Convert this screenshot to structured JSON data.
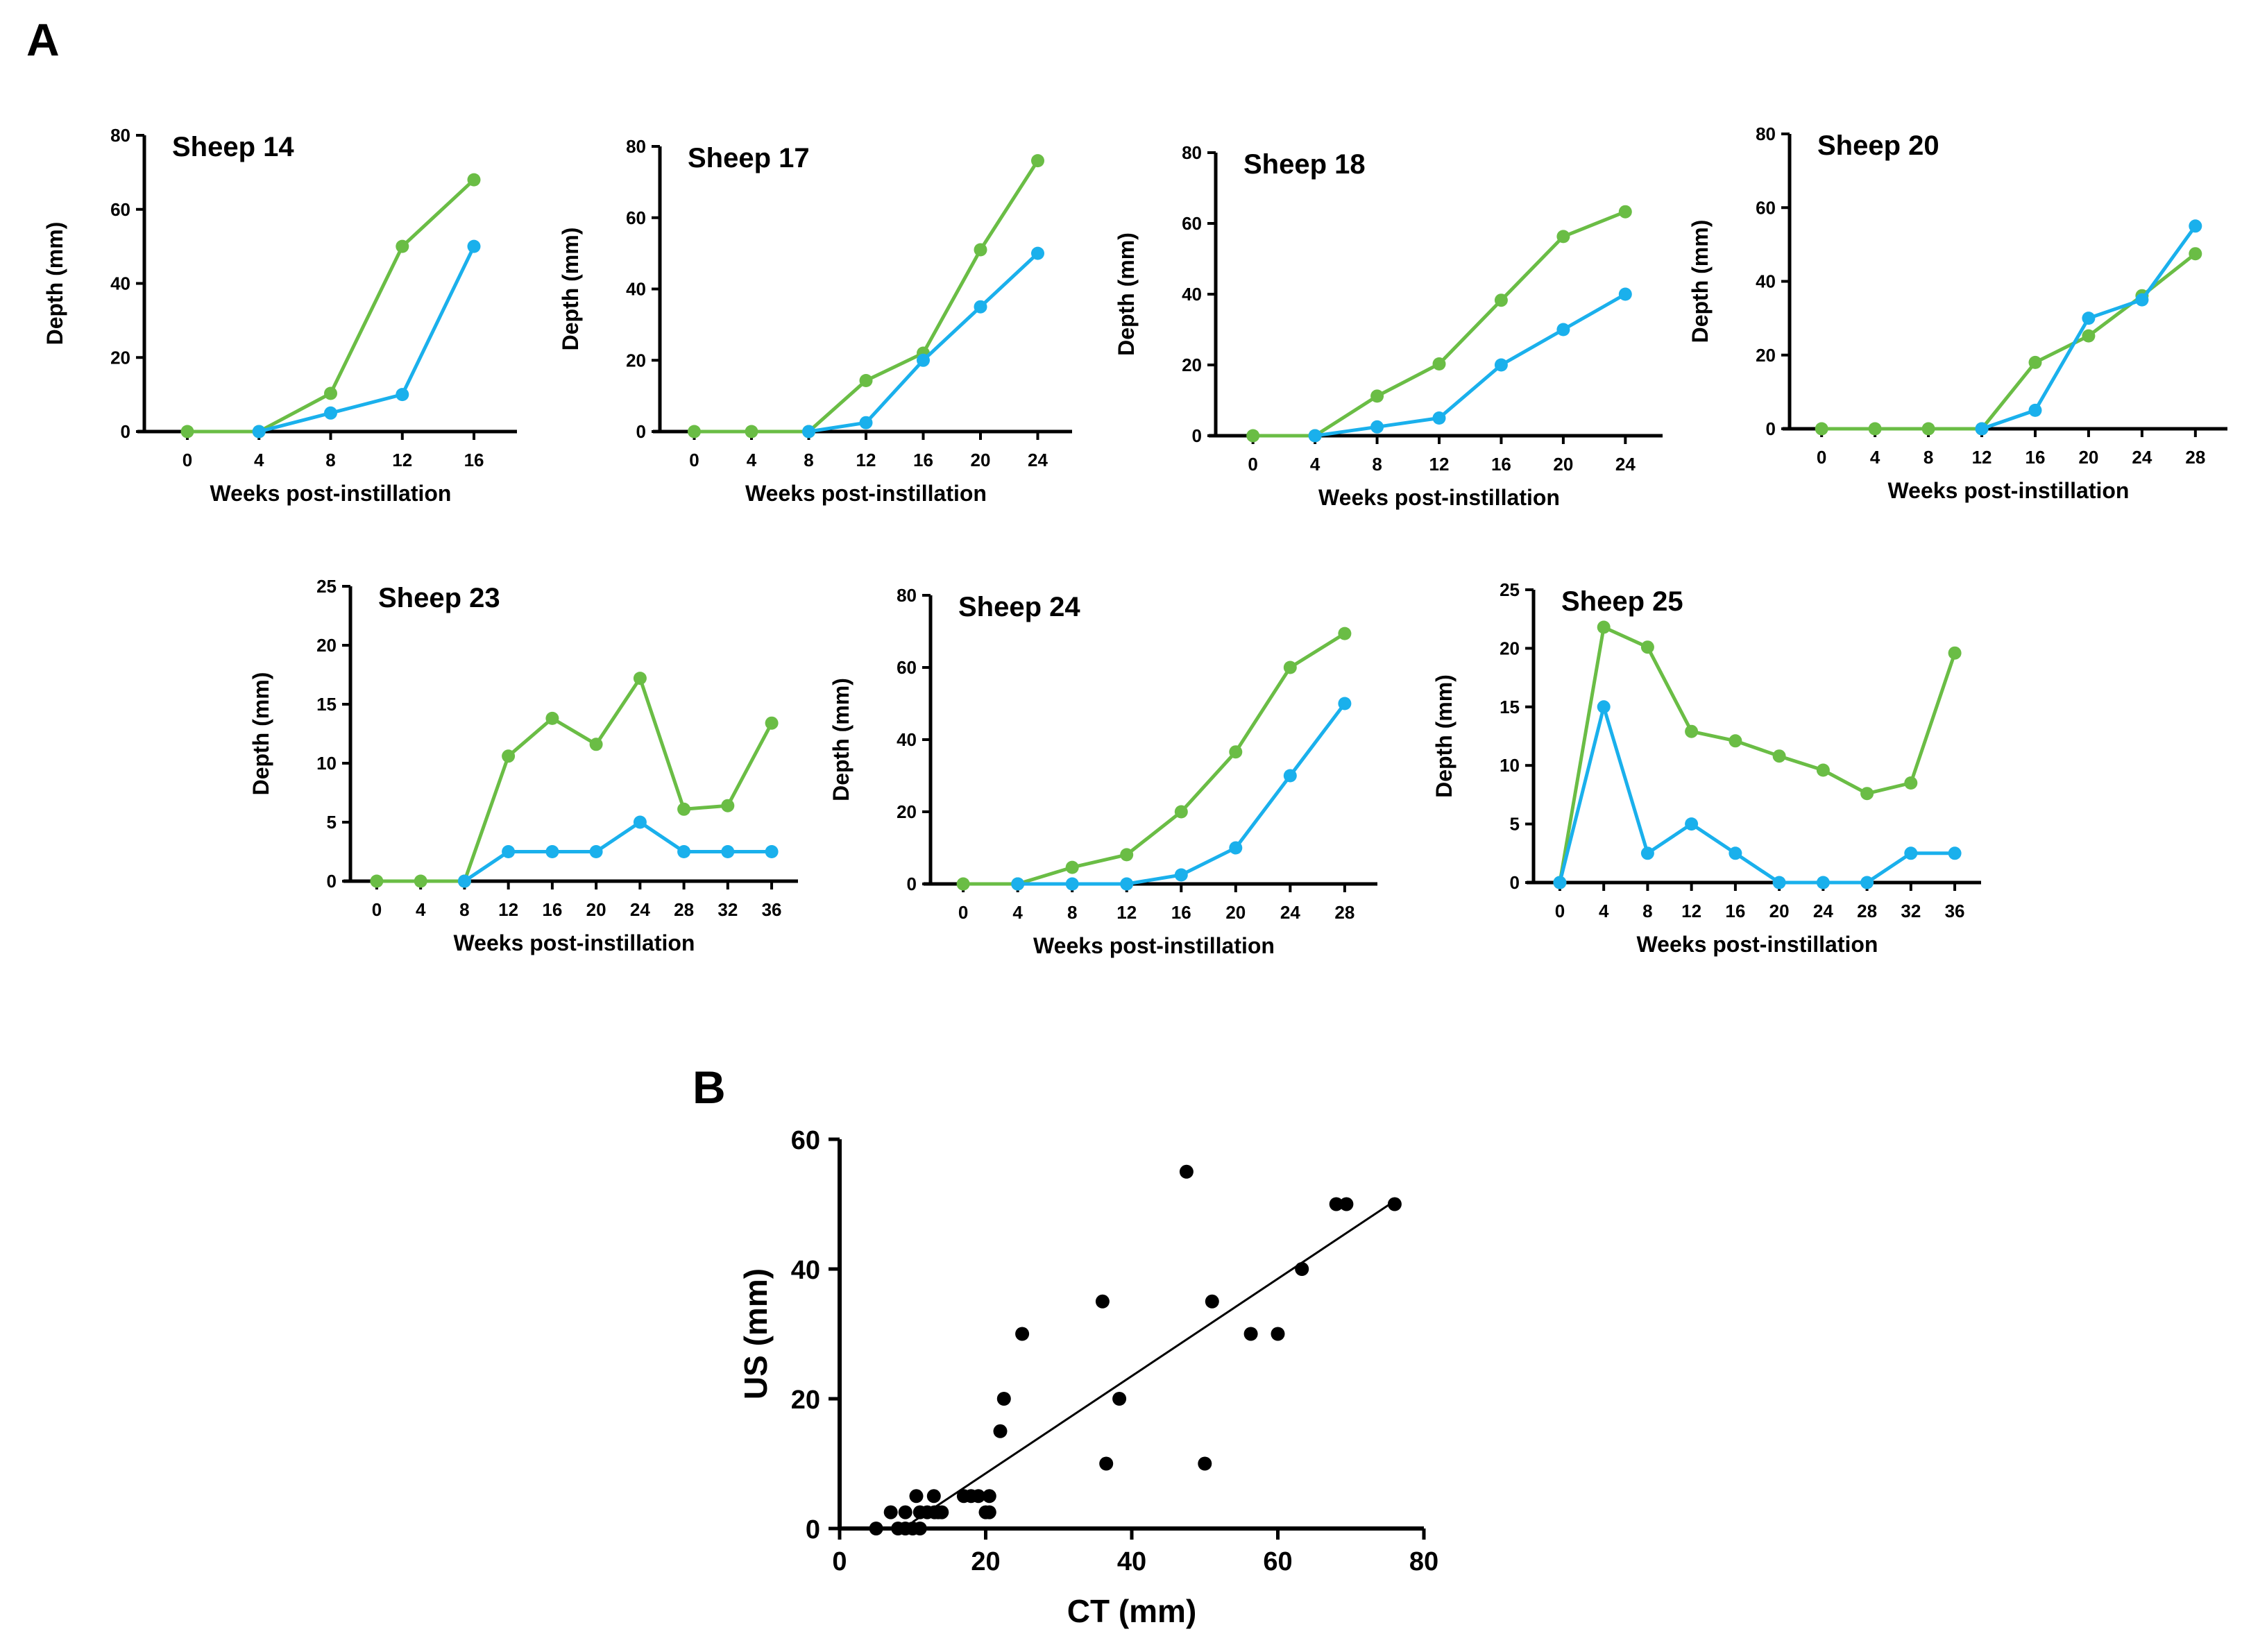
{
  "panels": {
    "a_label": "A",
    "b_label": "B"
  },
  "colors": {
    "ct": "#6abd45",
    "us": "#1ab0ec",
    "scatter": "#000000",
    "axis": "#000000"
  },
  "chart_data": [
    {
      "type": "line",
      "title": "Sheep 14",
      "xlabel": "Weeks post-instillation",
      "ylabel": "Depth (mm)",
      "categories": [
        "0",
        "4",
        "8",
        "12",
        "16"
      ],
      "ylim": [
        0,
        80
      ],
      "yticks": [
        0,
        20,
        40,
        60,
        80
      ],
      "series": [
        {
          "name": "green",
          "color": "#6abd45",
          "values": [
            0,
            0,
            10.3,
            50,
            68
          ]
        },
        {
          "name": "blue",
          "color": "#1ab0ec",
          "values": [
            null,
            0,
            5,
            10,
            50
          ]
        }
      ]
    },
    {
      "type": "line",
      "title": "Sheep 17",
      "xlabel": "Weeks post-instillation",
      "ylabel": "Depth (mm)",
      "categories": [
        "0",
        "4",
        "8",
        "12",
        "16",
        "20",
        "24"
      ],
      "ylim": [
        0,
        80
      ],
      "yticks": [
        0,
        20,
        40,
        60,
        80
      ],
      "series": [
        {
          "name": "green",
          "color": "#6abd45",
          "values": [
            0,
            0,
            0,
            14.3,
            22,
            51,
            76
          ]
        },
        {
          "name": "blue",
          "color": "#1ab0ec",
          "values": [
            null,
            null,
            0,
            2.5,
            20,
            35,
            50
          ]
        }
      ]
    },
    {
      "type": "line",
      "title": "Sheep 18",
      "xlabel": "Weeks post-instillation",
      "ylabel": "Depth (mm)",
      "categories": [
        "0",
        "4",
        "8",
        "12",
        "16",
        "20",
        "24"
      ],
      "ylim": [
        0,
        80
      ],
      "yticks": [
        0,
        20,
        40,
        60,
        80
      ],
      "series": [
        {
          "name": "green",
          "color": "#6abd45",
          "values": [
            0,
            0,
            11.2,
            20.3,
            38.3,
            56.3,
            63.3
          ]
        },
        {
          "name": "blue",
          "color": "#1ab0ec",
          "values": [
            null,
            0,
            2.5,
            5,
            20,
            30,
            40
          ]
        }
      ]
    },
    {
      "type": "line",
      "title": "Sheep 20",
      "xlabel": "Weeks post-instillation",
      "ylabel": "Depth (mm)",
      "categories": [
        "0",
        "4",
        "8",
        "12",
        "16",
        "20",
        "24",
        "28"
      ],
      "ylim": [
        0,
        80
      ],
      "yticks": [
        0,
        20,
        40,
        60,
        80
      ],
      "series": [
        {
          "name": "green",
          "color": "#6abd45",
          "values": [
            0,
            0,
            0,
            0,
            18,
            25.2,
            36.1,
            47.5
          ]
        },
        {
          "name": "blue",
          "color": "#1ab0ec",
          "values": [
            null,
            null,
            null,
            0,
            5,
            30,
            35,
            55
          ]
        }
      ]
    },
    {
      "type": "line",
      "title": "Sheep 23",
      "xlabel": "Weeks post-instillation",
      "ylabel": "Depth (mm)",
      "categories": [
        "0",
        "4",
        "8",
        "12",
        "16",
        "20",
        "24",
        "28",
        "32",
        "36"
      ],
      "ylim": [
        0,
        25
      ],
      "yticks": [
        0,
        5,
        10,
        15,
        20,
        25
      ],
      "series": [
        {
          "name": "green",
          "color": "#6abd45",
          "values": [
            0,
            0,
            0,
            10.6,
            13.8,
            11.6,
            17.2,
            6.1,
            6.4,
            13.4
          ]
        },
        {
          "name": "blue",
          "color": "#1ab0ec",
          "values": [
            null,
            null,
            0,
            2.5,
            2.5,
            2.5,
            5,
            2.5,
            2.5,
            2.5
          ]
        }
      ]
    },
    {
      "type": "line",
      "title": "Sheep 24",
      "xlabel": "Weeks post-instillation",
      "ylabel": "Depth (mm)",
      "categories": [
        "0",
        "4",
        "8",
        "12",
        "16",
        "20",
        "24",
        "28"
      ],
      "ylim": [
        0,
        80
      ],
      "yticks": [
        0,
        20,
        40,
        60,
        80
      ],
      "series": [
        {
          "name": "green",
          "color": "#6abd45",
          "values": [
            0,
            0,
            4.6,
            8.1,
            20,
            36.6,
            60,
            69.4
          ]
        },
        {
          "name": "blue",
          "color": "#1ab0ec",
          "values": [
            null,
            0,
            0,
            0,
            2.5,
            10,
            30,
            50
          ]
        }
      ]
    },
    {
      "type": "line",
      "title": "Sheep 25",
      "xlabel": "Weeks post-instillation",
      "ylabel": "Depth (mm)",
      "categories": [
        "0",
        "4",
        "8",
        "12",
        "16",
        "20",
        "24",
        "28",
        "32",
        "36"
      ],
      "ylim": [
        0,
        25
      ],
      "yticks": [
        0,
        5,
        10,
        15,
        20,
        25
      ],
      "series": [
        {
          "name": "green",
          "color": "#6abd45",
          "values": [
            0,
            21.8,
            20.1,
            12.9,
            12.1,
            10.8,
            9.6,
            7.6,
            8.5,
            19.6
          ]
        },
        {
          "name": "blue",
          "color": "#1ab0ec",
          "values": [
            0,
            15,
            2.5,
            5,
            2.5,
            0,
            0,
            0,
            2.5,
            2.5
          ]
        }
      ]
    },
    {
      "type": "scatter",
      "title": "",
      "xlabel": "CT (mm)",
      "ylabel": "US (mm)",
      "xlim": [
        0,
        80
      ],
      "ylim": [
        0,
        60
      ],
      "xticks": [
        0,
        20,
        40,
        60,
        80
      ],
      "yticks": [
        0,
        20,
        40,
        60
      ],
      "points": [
        [
          5,
          0
        ],
        [
          7,
          2.5
        ],
        [
          8,
          0
        ],
        [
          9,
          2.5
        ],
        [
          9,
          0
        ],
        [
          10,
          0
        ],
        [
          11,
          0
        ],
        [
          10.5,
          5
        ],
        [
          11,
          2.5
        ],
        [
          12,
          2.5
        ],
        [
          13,
          2.5
        ],
        [
          12.9,
          5
        ],
        [
          14,
          2.5
        ],
        [
          13.5,
          2.5
        ],
        [
          17,
          5
        ],
        [
          18,
          5
        ],
        [
          19,
          5
        ],
        [
          20,
          2.5
        ],
        [
          20.5,
          2.5
        ],
        [
          20.5,
          5
        ],
        [
          22,
          15
        ],
        [
          22.5,
          20
        ],
        [
          25,
          30
        ],
        [
          36,
          35
        ],
        [
          36.5,
          10
        ],
        [
          38.3,
          20
        ],
        [
          47.5,
          55
        ],
        [
          50,
          10
        ],
        [
          51,
          35
        ],
        [
          56.3,
          30
        ],
        [
          60,
          30
        ],
        [
          63.3,
          40
        ],
        [
          68,
          50
        ],
        [
          69.4,
          50
        ],
        [
          76,
          50
        ]
      ],
      "fit_line": [
        [
          10,
          1
        ],
        [
          76,
          50.5
        ]
      ]
    }
  ]
}
